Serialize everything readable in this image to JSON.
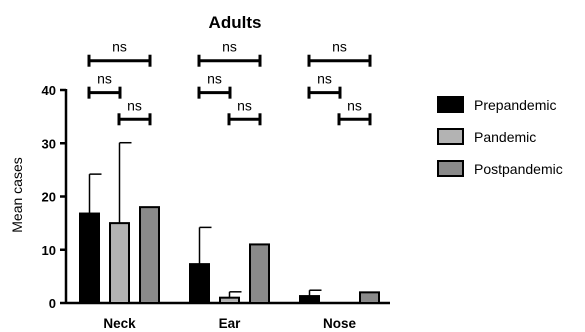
{
  "chart_data": {
    "type": "bar",
    "title": "Adults",
    "xlabel": "",
    "ylabel": "Mean cases",
    "ylim": [
      0,
      40
    ],
    "yticks": [
      0,
      10,
      20,
      30,
      40
    ],
    "grid": false,
    "legend_position": "right",
    "categories": [
      "Neck",
      "Ear",
      "Nose"
    ],
    "series": [
      {
        "name": "Prepandemic",
        "color": "#000000",
        "values": [
          16.8,
          7.3,
          1.3
        ],
        "error_upper": [
          24.2,
          14.2,
          2.4
        ]
      },
      {
        "name": "Pandemic",
        "color": "#b3b3b3",
        "values": [
          15.0,
          1.0,
          0
        ],
        "error_upper": [
          30.1,
          2.1,
          null
        ]
      },
      {
        "name": "Postpandemic",
        "color": "#8a8a8a",
        "values": [
          18.0,
          11.0,
          2.0
        ],
        "error_upper": [
          null,
          null,
          null
        ]
      }
    ],
    "comparisons": [
      {
        "category": "Neck",
        "from_series": 0,
        "to_series": 2,
        "y": 45.5,
        "label": "ns"
      },
      {
        "category": "Neck",
        "from_series": 0,
        "to_series": 1,
        "y": 39.5,
        "label": "ns"
      },
      {
        "category": "Neck",
        "from_series": 1,
        "to_series": 2,
        "y": 34.5,
        "label": "ns"
      },
      {
        "category": "Ear",
        "from_series": 0,
        "to_series": 2,
        "y": 45.5,
        "label": "ns"
      },
      {
        "category": "Ear",
        "from_series": 0,
        "to_series": 1,
        "y": 39.5,
        "label": "ns"
      },
      {
        "category": "Ear",
        "from_series": 1,
        "to_series": 2,
        "y": 34.5,
        "label": "ns"
      },
      {
        "category": "Nose",
        "from_series": 0,
        "to_series": 2,
        "y": 45.5,
        "label": "ns"
      },
      {
        "category": "Nose",
        "from_series": 0,
        "to_series": 1,
        "y": 39.5,
        "label": "ns"
      },
      {
        "category": "Nose",
        "from_series": 1,
        "to_series": 2,
        "y": 34.5,
        "label": "ns"
      }
    ]
  }
}
